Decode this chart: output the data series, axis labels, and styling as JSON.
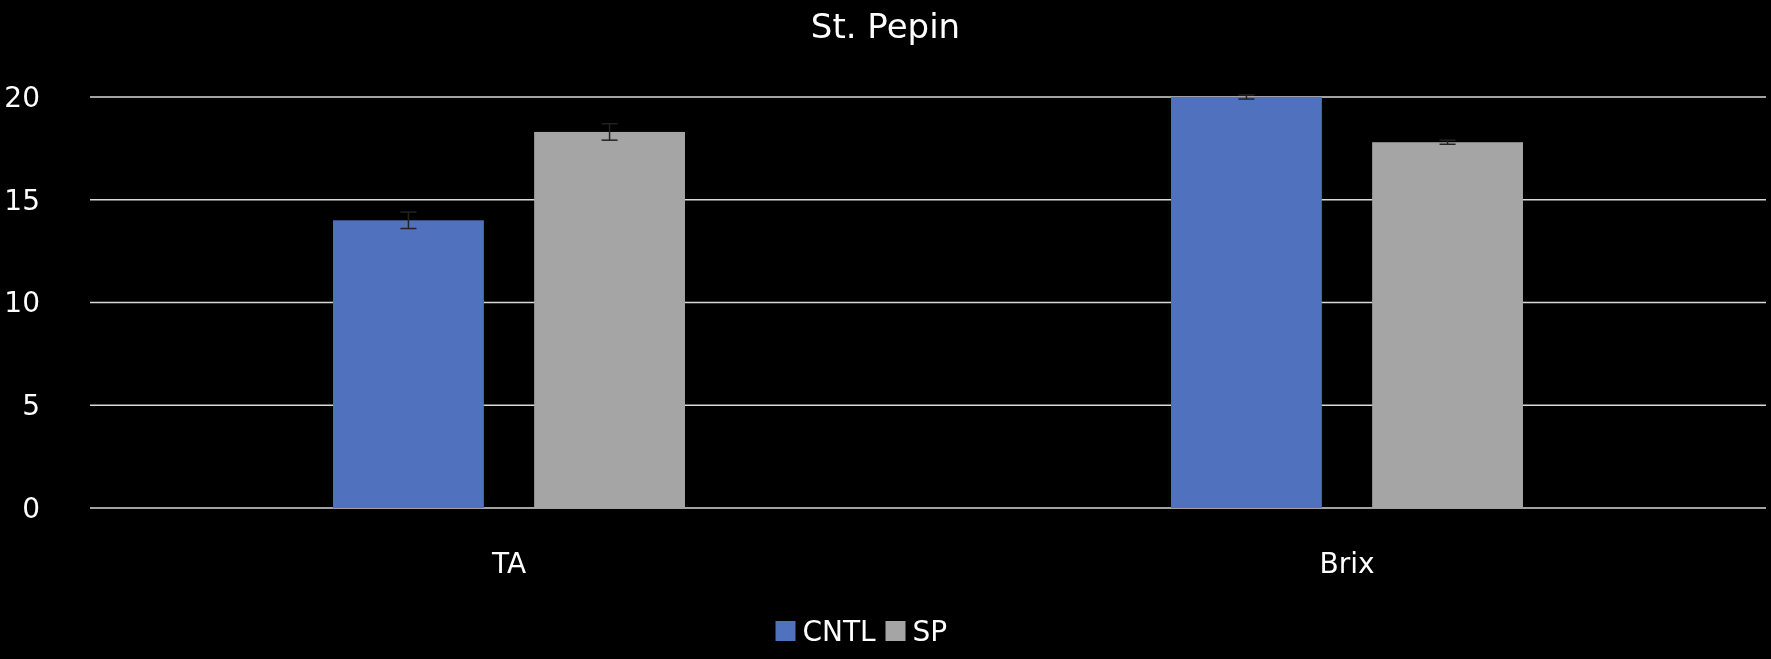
{
  "chart_data": {
    "type": "bar",
    "title": "St. Pepin",
    "categories": [
      "TA",
      "Brix"
    ],
    "series": [
      {
        "name": "CNTL",
        "color": "#4f71be",
        "values": [
          14.0,
          20.0
        ],
        "errors": [
          0.4,
          0.1
        ]
      },
      {
        "name": "SP",
        "color": "#a5a5a5",
        "values": [
          18.3,
          17.8
        ],
        "errors": [
          0.4,
          0.1
        ]
      }
    ],
    "ylim": [
      0,
      20
    ],
    "yticks": [
      0,
      5,
      10,
      15,
      20
    ],
    "grid": "y",
    "legend": "bottom"
  }
}
